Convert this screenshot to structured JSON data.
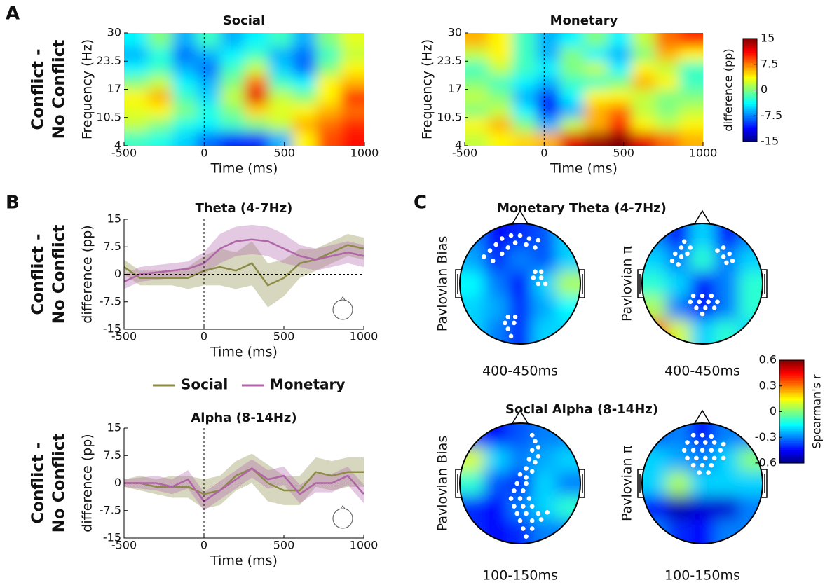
{
  "chart_data": [
    {
      "type": "heatmap",
      "panel_label": "A",
      "title": "Social",
      "row_label": [
        "Conflict -",
        "No Conflict"
      ],
      "xlabel": "Time (ms)",
      "ylabel": "Frequency (Hz)",
      "x_edges": [
        -500,
        -350,
        -200,
        -50,
        100,
        250,
        400,
        550,
        700,
        850,
        1000
      ],
      "y_edges": [
        4,
        7.25,
        10.5,
        13.75,
        17,
        20.25,
        23.5,
        26.75,
        30
      ],
      "z": [
        [
          -2,
          -3,
          -5,
          -8,
          -10,
          -10,
          -6,
          4,
          9,
          11
        ],
        [
          2,
          0,
          -3,
          -4,
          -2,
          0,
          2,
          6,
          8,
          10
        ],
        [
          3,
          4,
          0,
          -3,
          0,
          5,
          3,
          4,
          6,
          8
        ],
        [
          4,
          6,
          -2,
          -5,
          2,
          12,
          2,
          0,
          4,
          10
        ],
        [
          0,
          2,
          -4,
          -6,
          0,
          8,
          -2,
          -4,
          4,
          6
        ],
        [
          -4,
          -2,
          -6,
          -8,
          -2,
          2,
          -5,
          -8,
          0,
          4
        ],
        [
          -6,
          -3,
          -8,
          -6,
          -4,
          -2,
          -6,
          -8,
          -2,
          2
        ],
        [
          -4,
          0,
          -6,
          -2,
          -6,
          -4,
          -2,
          -6,
          0,
          3
        ]
      ],
      "clim": [
        -15,
        15
      ],
      "colormap": "jet",
      "vline_x": 0,
      "xlim": [
        -500,
        1000
      ],
      "ylim": [
        4,
        30
      ],
      "xticks": [
        -500,
        0,
        500,
        1000
      ],
      "yticks": [
        4,
        10.5,
        17,
        23.5,
        30
      ]
    },
    {
      "type": "heatmap",
      "title": "Monetary",
      "xlabel": "Time (ms)",
      "ylabel": "Frequency (Hz)",
      "x_edges": [
        -500,
        -350,
        -200,
        -50,
        100,
        250,
        400,
        550,
        700,
        850,
        1000
      ],
      "y_edges": [
        4,
        7.25,
        10.5,
        13.75,
        17,
        20.25,
        23.5,
        26.75,
        30
      ],
      "z": [
        [
          2,
          4,
          5,
          6,
          12,
          14,
          15,
          12,
          8,
          6
        ],
        [
          4,
          6,
          0,
          -6,
          2,
          6,
          10,
          4,
          2,
          4
        ],
        [
          0,
          2,
          -4,
          -10,
          -6,
          6,
          8,
          2,
          0,
          2
        ],
        [
          2,
          0,
          -6,
          -10,
          -4,
          4,
          4,
          2,
          0,
          0
        ],
        [
          0,
          -2,
          -4,
          -6,
          -2,
          -2,
          0,
          6,
          4,
          -2
        ],
        [
          -2,
          2,
          -2,
          -4,
          0,
          2,
          -4,
          4,
          2,
          -2
        ],
        [
          2,
          4,
          -2,
          -6,
          0,
          -4,
          -6,
          0,
          6,
          4
        ],
        [
          6,
          4,
          -2,
          -6,
          -4,
          0,
          -4,
          2,
          8,
          10
        ]
      ],
      "clim": [
        -15,
        15
      ],
      "colormap": "jet",
      "vline_x": 0,
      "xlim": [
        -500,
        1000
      ],
      "ylim": [
        4,
        30
      ],
      "xticks": [
        -500,
        0,
        500,
        1000
      ],
      "yticks": [
        4,
        10.5,
        17,
        23.5,
        30
      ]
    },
    {
      "type": "colorbar",
      "label": "difference (pp)",
      "colormap": "jet",
      "ylim": [
        -15,
        15
      ],
      "yticks": [
        -15,
        -7.5,
        0,
        7.5,
        15
      ]
    },
    {
      "type": "line",
      "panel_label": "B",
      "title": "Theta (4-7Hz)",
      "row_label": [
        "Conflict -",
        "No Conflict"
      ],
      "xlabel": "Time (ms)",
      "ylabel": "difference (pp)",
      "legend": true,
      "x": [
        -500,
        -400,
        -300,
        -200,
        -100,
        0,
        100,
        200,
        300,
        400,
        500,
        600,
        700,
        800,
        900,
        1000
      ],
      "series": [
        {
          "name": "Social",
          "color": "#8b8b47",
          "values": [
            2,
            -1,
            -1,
            -1,
            -1,
            1,
            2,
            1,
            3,
            -3,
            -1,
            3,
            4,
            6,
            8,
            7
          ],
          "error": [
            2,
            2,
            2,
            2,
            3,
            4,
            5,
            5,
            6,
            6,
            5,
            4,
            3,
            3,
            3,
            3
          ]
        },
        {
          "name": "Monetary",
          "color": "#b065a8",
          "values": [
            -2,
            0,
            0.5,
            1,
            1.5,
            3,
            7,
            9,
            9.5,
            9,
            7,
            5,
            4,
            5,
            6,
            5
          ],
          "error": [
            2,
            2,
            2,
            2,
            2,
            3,
            4,
            4,
            4,
            4,
            4,
            3,
            3,
            3,
            3,
            3
          ]
        }
      ],
      "vline_x": 0,
      "hline_y": 0,
      "xlim": [
        -500,
        1000
      ],
      "ylim": [
        -15,
        15
      ],
      "xticks": [
        -500,
        0,
        500,
        1000
      ],
      "yticks": [
        -15,
        -7.5,
        0,
        7.5,
        15
      ]
    },
    {
      "type": "line",
      "title": "Alpha (8-14Hz)",
      "row_label": [
        "Conflict -",
        "No Conflict"
      ],
      "xlabel": "Time (ms)",
      "ylabel": "difference (pp)",
      "x": [
        -500,
        -400,
        -300,
        -200,
        -100,
        0,
        100,
        200,
        300,
        400,
        500,
        600,
        700,
        800,
        900,
        1000
      ],
      "series": [
        {
          "color": "#8b8b47",
          "values": [
            0,
            0,
            -1,
            -1,
            -1,
            -3,
            -2,
            2,
            4,
            0,
            -2,
            -2,
            3,
            2,
            3,
            3
          ],
          "error": [
            1,
            2,
            2,
            3,
            3,
            4,
            4,
            4,
            4,
            5,
            4,
            4,
            4,
            4,
            4,
            4
          ]
        },
        {
          "color": "#b065a8",
          "values": [
            0,
            0,
            0,
            -1,
            1,
            -5,
            -2,
            1,
            4,
            1,
            2,
            -3,
            0,
            0,
            2,
            -3
          ],
          "error": [
            1,
            1.5,
            2,
            2,
            2.5,
            2.5,
            2.5,
            2.5,
            2.5,
            2.5,
            2.5,
            2.5,
            2.5,
            2.5,
            2.5,
            2.5
          ]
        }
      ],
      "vline_x": 0,
      "hline_y": 0,
      "xlim": [
        -500,
        1000
      ],
      "ylim": [
        -15,
        15
      ],
      "xticks": [
        -500,
        0,
        500,
        1000
      ],
      "yticks": [
        -15,
        -7.5,
        0,
        7.5,
        15
      ]
    },
    {
      "type": "topomap",
      "panel_label": "C",
      "title": "Monetary Theta (4-7Hz)",
      "ylabel": "Pavlovian Bias",
      "xlabel": "400-450ms",
      "clim": [
        -0.6,
        0.6
      ],
      "colormap": "jet",
      "grid": [
        [
          -0.3,
          -0.45,
          -0.4,
          -0.35,
          -0.2
        ],
        [
          -0.25,
          -0.4,
          -0.3,
          -0.35,
          -0.2
        ],
        [
          -0.15,
          -0.3,
          -0.45,
          -0.2,
          0.05
        ],
        [
          -0.2,
          -0.25,
          -0.4,
          -0.25,
          -0.15
        ],
        [
          -0.2,
          -0.3,
          -0.4,
          -0.2,
          -0.2
        ]
      ],
      "electrodes": [
        [
          -0.6,
          -0.45
        ],
        [
          -0.5,
          -0.55
        ],
        [
          -0.4,
          -0.65
        ],
        [
          -0.3,
          -0.75
        ],
        [
          -0.15,
          -0.8
        ],
        [
          0,
          -0.8
        ],
        [
          0.15,
          -0.75
        ],
        [
          0.3,
          -0.72
        ],
        [
          -0.45,
          -0.38
        ],
        [
          -0.3,
          -0.5
        ],
        [
          -0.2,
          -0.6
        ],
        [
          -0.08,
          -0.68
        ],
        [
          0.1,
          -0.65
        ],
        [
          0.25,
          -0.6
        ],
        [
          0.25,
          -0.2
        ],
        [
          0.35,
          -0.2
        ],
        [
          0.22,
          -0.1
        ],
        [
          0.35,
          -0.1
        ],
        [
          0.3,
          0.0
        ],
        [
          0.42,
          0.0
        ],
        [
          -0.2,
          0.55
        ],
        [
          -0.08,
          0.55
        ],
        [
          -0.25,
          0.65
        ],
        [
          -0.1,
          0.65
        ],
        [
          -0.2,
          0.75
        ],
        [
          -0.15,
          0.87
        ]
      ]
    },
    {
      "type": "topomap",
      "ylabel": "Pavlovian π",
      "xlabel": "400-450ms",
      "clim": [
        -0.6,
        0.6
      ],
      "colormap": "jet",
      "grid": [
        [
          -0.3,
          -0.45,
          -0.2,
          -0.45,
          -0.3
        ],
        [
          -0.2,
          -0.3,
          -0.1,
          -0.3,
          -0.2
        ],
        [
          -0.1,
          -0.2,
          -0.45,
          -0.3,
          -0.1
        ],
        [
          0.05,
          -0.3,
          -0.45,
          -0.3,
          -0.1
        ],
        [
          0.4,
          0.1,
          -0.2,
          -0.1,
          -0.2
        ]
      ],
      "electrodes": [
        [
          -0.35,
          -0.6
        ],
        [
          -0.45,
          -0.5
        ],
        [
          -0.35,
          -0.45
        ],
        [
          -0.25,
          -0.5
        ],
        [
          -0.3,
          -0.7
        ],
        [
          -0.2,
          -0.6
        ],
        [
          -0.5,
          -0.38
        ],
        [
          -0.4,
          -0.32
        ],
        [
          0.35,
          -0.6
        ],
        [
          0.45,
          -0.5
        ],
        [
          0.35,
          -0.45
        ],
        [
          0.25,
          -0.55
        ],
        [
          0.4,
          -0.35
        ],
        [
          0.5,
          -0.38
        ],
        [
          -0.15,
          0.2
        ],
        [
          0,
          0.2
        ],
        [
          0.15,
          0.2
        ],
        [
          -0.2,
          0.3
        ],
        [
          -0.05,
          0.3
        ],
        [
          0.1,
          0.3
        ],
        [
          0.25,
          0.3
        ],
        [
          -0.1,
          0.4
        ],
        [
          0.05,
          0.4
        ],
        [
          0.2,
          0.4
        ],
        [
          0,
          0.5
        ]
      ]
    },
    {
      "type": "topomap",
      "title": "Social Alpha (8-14Hz)",
      "ylabel": "Pavlovian Bias",
      "xlabel": "100-150ms",
      "clim": [
        -0.6,
        0.6
      ],
      "colormap": "jet",
      "grid": [
        [
          -0.4,
          -0.45,
          -0.35,
          -0.3,
          -0.3
        ],
        [
          0.1,
          -0.2,
          -0.3,
          -0.25,
          -0.2
        ],
        [
          -0.1,
          -0.35,
          -0.4,
          -0.2,
          -0.3
        ],
        [
          -0.4,
          -0.45,
          -0.3,
          -0.2,
          -0.1
        ],
        [
          -0.4,
          -0.45,
          -0.4,
          -0.3,
          -0.3
        ]
      ],
      "electrodes": [
        [
          0.2,
          -0.8
        ],
        [
          0.25,
          -0.7
        ],
        [
          0.3,
          -0.6
        ],
        [
          0.2,
          -0.55
        ],
        [
          0.3,
          -0.45
        ],
        [
          0.15,
          -0.4
        ],
        [
          0.25,
          -0.35
        ],
        [
          0.1,
          -0.25
        ],
        [
          0.2,
          -0.2
        ],
        [
          0,
          -0.15
        ],
        [
          0.1,
          -0.1
        ],
        [
          -0.05,
          0
        ],
        [
          0.1,
          0
        ],
        [
          -0.1,
          0.12
        ],
        [
          0.05,
          0.12
        ],
        [
          -0.15,
          0.25
        ],
        [
          0,
          0.25
        ],
        [
          0.15,
          0.25
        ],
        [
          -0.1,
          0.38
        ],
        [
          0.05,
          0.38
        ],
        [
          0.2,
          0.38
        ],
        [
          -0.05,
          0.5
        ],
        [
          0.1,
          0.5
        ],
        [
          0.3,
          0.5
        ],
        [
          0.45,
          0.48
        ],
        [
          0,
          0.62
        ],
        [
          0.2,
          0.62
        ],
        [
          0.35,
          0.6
        ],
        [
          0.05,
          0.75
        ],
        [
          0.2,
          0.75
        ],
        [
          0.1,
          0.88
        ]
      ]
    },
    {
      "type": "topomap",
      "ylabel": "Pavlovian π",
      "xlabel": "100-150ms",
      "clim": [
        -0.6,
        0.6
      ],
      "colormap": "jet",
      "grid": [
        [
          -0.35,
          -0.3,
          -0.45,
          -0.3,
          -0.3
        ],
        [
          -0.2,
          -0.25,
          -0.3,
          -0.2,
          0.0
        ],
        [
          -0.2,
          0.05,
          -0.2,
          -0.2,
          -0.2
        ],
        [
          -0.45,
          -0.55,
          -0.5,
          -0.5,
          -0.3
        ],
        [
          -0.3,
          -0.4,
          -0.45,
          -0.3,
          -0.3
        ]
      ],
      "electrodes": [
        [
          -0.15,
          -0.8
        ],
        [
          0,
          -0.8
        ],
        [
          0.15,
          -0.78
        ],
        [
          -0.25,
          -0.68
        ],
        [
          -0.1,
          -0.68
        ],
        [
          0.05,
          -0.68
        ],
        [
          0.2,
          -0.68
        ],
        [
          0.35,
          -0.65
        ],
        [
          -0.3,
          -0.55
        ],
        [
          -0.15,
          -0.55
        ],
        [
          0,
          -0.55
        ],
        [
          0.15,
          -0.55
        ],
        [
          0.3,
          -0.55
        ],
        [
          -0.25,
          -0.42
        ],
        [
          -0.1,
          -0.42
        ],
        [
          0.05,
          -0.42
        ],
        [
          0.2,
          -0.42
        ],
        [
          0.35,
          -0.42
        ],
        [
          -0.15,
          -0.3
        ],
        [
          0,
          -0.3
        ],
        [
          0.15,
          -0.3
        ],
        [
          -0.05,
          -0.18
        ],
        [
          0.1,
          -0.18
        ]
      ]
    },
    {
      "type": "colorbar",
      "label": "Spearman's r",
      "colormap": "jet",
      "ylim": [
        -0.6,
        0.6
      ],
      "yticks": [
        -0.6,
        -0.3,
        0,
        0.3,
        0.6
      ]
    }
  ]
}
